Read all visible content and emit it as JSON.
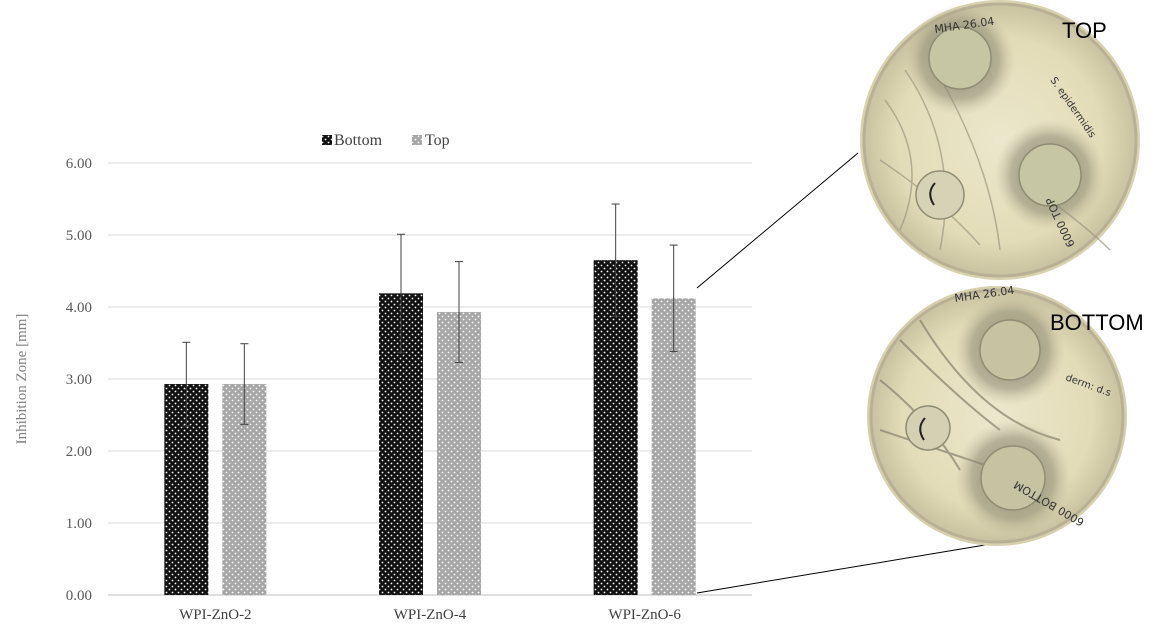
{
  "chart_data": {
    "type": "bar",
    "categories": [
      "WPI-ZnO-2",
      "WPI-ZnO-4",
      "WPI-ZnO-6"
    ],
    "series": [
      {
        "name": "Bottom",
        "values": [
          2.93,
          4.19,
          4.65
        ],
        "errors": [
          0.58,
          0.82,
          0.78
        ],
        "color": "#111111",
        "pattern": "dotted-dark"
      },
      {
        "name": "Top",
        "values": [
          2.93,
          3.93,
          4.12
        ],
        "errors": [
          0.56,
          0.7,
          0.74
        ],
        "color": "#a6a6a6",
        "pattern": "dotted-light"
      }
    ],
    "ylabel": "Inhibition Zone [mm]",
    "ylim": [
      0,
      6
    ],
    "yticks": [
      "0.00",
      "1.00",
      "2.00",
      "3.00",
      "4.00",
      "5.00",
      "6.00"
    ],
    "grid": true,
    "legend_position": "top-center"
  },
  "photos": {
    "top_label": "TOP",
    "bottom_label": "BOTTOM",
    "top_plate_text": [
      "MHA 26.04",
      "S. epidermidis",
      "6000 TOP"
    ],
    "bottom_plate_text": [
      "MHA 26.04",
      "derm: d.s",
      "6000 BOTTOM"
    ]
  }
}
